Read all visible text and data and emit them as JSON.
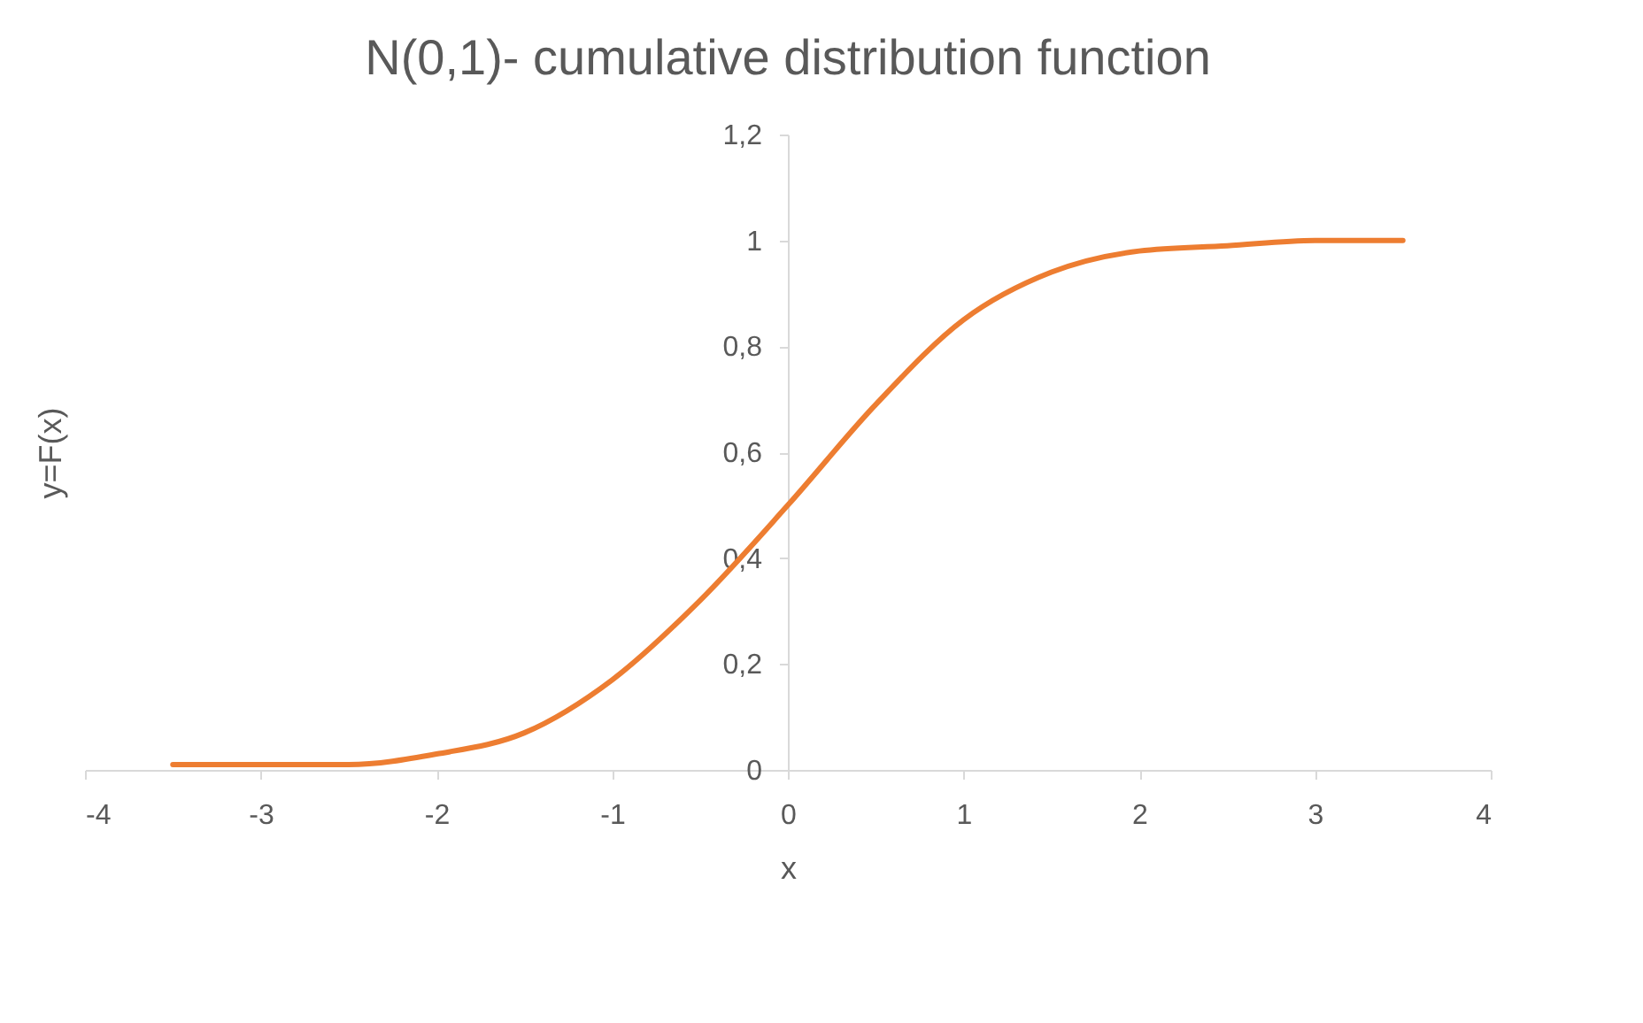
{
  "chart_data": {
    "type": "line",
    "title": "N(0,1)- cumulative distribution function",
    "xlabel": "x",
    "ylabel": "y=F(x)",
    "x": [
      -3.5,
      -3,
      -2.5,
      -2,
      -1.5,
      -1,
      -0.5,
      0,
      0.5,
      1,
      1.5,
      2,
      2.5,
      3,
      3.5
    ],
    "series": [
      {
        "color": "#ed7d31",
        "values": [
          0.01,
          0.01,
          0.01,
          0.03,
          0.07,
          0.17,
          0.32,
          0.5,
          0.69,
          0.85,
          0.94,
          0.98,
          0.99,
          1.0,
          1.0
        ]
      }
    ],
    "xlim": [
      -4,
      4
    ],
    "xticks": [
      -4,
      -3,
      -2,
      -1,
      0,
      1,
      2,
      3,
      4
    ],
    "ylim": [
      0,
      1.2
    ],
    "yticks": [
      0,
      {
        "value": 0.2,
        "label": "0,2"
      },
      {
        "value": 0.4,
        "label": "0,4"
      },
      {
        "value": 0.6,
        "label": "0,6"
      },
      {
        "value": 0.8,
        "label": "0,8"
      },
      1,
      {
        "value": 1.2,
        "label": "1,2"
      }
    ],
    "grid": false,
    "legend": false,
    "marker": "none",
    "line_style": "solid"
  }
}
